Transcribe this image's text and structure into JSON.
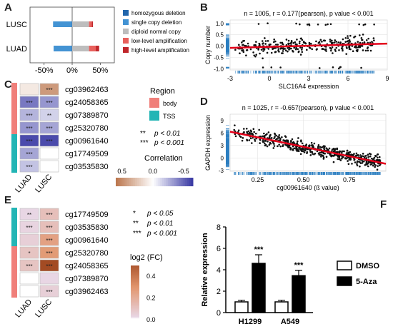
{
  "panels": {
    "A": {
      "letter": "A",
      "rows": [
        "LUSC",
        "LUAD"
      ],
      "ticks": [
        "-50%",
        "0%",
        "50%"
      ],
      "legend": [
        {
          "label": "homozygous deletion",
          "color": "#2166ac"
        },
        {
          "label": "single copy deletion",
          "color": "#4393d3"
        },
        {
          "label": "diploid normal copy",
          "color": "#bdbdbd"
        },
        {
          "label": "low-level amplification",
          "color": "#e8605c"
        },
        {
          "label": "high-level amplification",
          "color": "#c0262b"
        }
      ],
      "chart_data": {
        "type": "bar",
        "orientation": "horizontal-stacked",
        "categories": [
          "LUSC",
          "LUAD"
        ],
        "series": [
          {
            "name": "homozygous deletion",
            "values": [
              -1,
              -1
            ]
          },
          {
            "name": "single copy deletion",
            "values": [
              -33,
              -32
            ]
          },
          {
            "name": "diploid normal copy",
            "values": [
              30,
              30
            ]
          },
          {
            "name": "low-level amplification",
            "values": [
              5,
              12
            ]
          },
          {
            "name": "high-level amplification",
            "values": [
              2,
              6
            ]
          }
        ],
        "xlim": [
          -75,
          75
        ]
      }
    },
    "B": {
      "letter": "B",
      "title": "n = 1005, r = 0.177(pearson), p value < 0.001",
      "xlabel": "SLC16A4 expression",
      "ylabel": "Copy number",
      "xticks": [
        "-3",
        "0",
        "3",
        "6",
        "9"
      ],
      "yticks": [
        "1.0",
        "0.5",
        "0.0",
        "-0.5",
        "-1.0"
      ],
      "chart_data": {
        "type": "scatter",
        "xlim": [
          -3,
          9
        ],
        "ylim": [
          -1.05,
          1.15
        ],
        "fit_line": {
          "x": [
            -3,
            9
          ],
          "y": [
            -0.08,
            0.11
          ]
        }
      }
    },
    "C": {
      "letter": "C",
      "cols": [
        "LUAD",
        "LUSC"
      ],
      "probes": [
        "cg03962463",
        "cg24058365",
        "cg07389870",
        "cg25320780",
        "cg00961640",
        "cg17749509",
        "cg03535830"
      ],
      "regions": [
        "body",
        "body",
        "body",
        "body",
        "TSS",
        "TSS",
        "TSS"
      ],
      "stars": [
        [
          "",
          "***"
        ],
        [
          "***",
          "***"
        ],
        [
          "***",
          "**"
        ],
        [
          "***",
          "***"
        ],
        [
          "***",
          "***"
        ],
        [
          "***",
          ""
        ],
        [
          "***",
          ""
        ]
      ],
      "cells": [
        [
          0.1,
          0.45
        ],
        [
          -0.45,
          -0.35
        ],
        [
          -0.25,
          -0.15
        ],
        [
          -0.35,
          -0.3
        ],
        [
          -0.6,
          -0.6
        ],
        [
          -0.3,
          0.0
        ],
        [
          -0.2,
          0.0
        ]
      ],
      "region_title": "Region",
      "region_legend": [
        {
          "label": "body",
          "color": "#f07f7a"
        },
        {
          "label": "TSS",
          "color": "#22b5b5"
        }
      ],
      "sig_legend": [
        {
          "stars": "**",
          "text": "p < 0.01"
        },
        {
          "stars": "***",
          "text": "p < 0.001"
        }
      ],
      "colorbar_title": "Correlation",
      "colorbar_ticks": [
        "0.5",
        "0.0",
        "-0.5"
      ]
    },
    "D": {
      "letter": "D",
      "title": "n = 1025, r = -0.657(pearson), p value < 0.001",
      "xlabel": "cg00961640 (ß value)",
      "ylabel": "GAPDH expression",
      "xticks": [
        "0.25",
        "0.50",
        "0.75"
      ],
      "yticks": [
        "9",
        "6",
        "3",
        "0",
        "-3"
      ],
      "chart_data": {
        "type": "scatter",
        "xlim": [
          0.1,
          0.95
        ],
        "ylim": [
          -3.2,
          10.5
        ],
        "fit_line": {
          "x": [
            0.1,
            0.95
          ],
          "y": [
            6.3,
            -1.4
          ]
        }
      }
    },
    "E": {
      "letter": "E",
      "cols": [
        "LUAD",
        "LUSC"
      ],
      "probes": [
        "cg17749509",
        "cg03535830",
        "cg00961640",
        "cg25320780",
        "cg24058365",
        "cg07389870",
        "cg03962463"
      ],
      "regions": [
        "TSS",
        "TSS",
        "TSS",
        "body",
        "body",
        "body",
        "body"
      ],
      "stars": [
        [
          "**",
          "***"
        ],
        [
          "***",
          "***"
        ],
        [
          "",
          "***"
        ],
        [
          "*",
          "***"
        ],
        [
          "***",
          "***"
        ],
        [
          "",
          ""
        ],
        [
          "",
          "***"
        ]
      ],
      "cells": [
        [
          0.02,
          0.12
        ],
        [
          0.03,
          0.12
        ],
        [
          0.05,
          0.25
        ],
        [
          0.1,
          0.28
        ],
        [
          0.1,
          0.55
        ],
        [
          0.0,
          0.02
        ],
        [
          0.0,
          0.05
        ]
      ],
      "sig_legend": [
        {
          "stars": "*",
          "text": "p < 0.05"
        },
        {
          "stars": "**",
          "text": "p < 0.01"
        },
        {
          "stars": "***",
          "text": "p < 0.001"
        }
      ],
      "colorbar_title": "log2 (FC)",
      "colorbar_ticks": [
        "0.4",
        "0.2",
        "0.0"
      ]
    },
    "F": {
      "letter": "F",
      "ylabel": "Relative expression",
      "yticks": [
        "8",
        "6",
        "4",
        "2",
        "0"
      ],
      "legend": [
        {
          "label": "DMSO",
          "fill": "#ffffff"
        },
        {
          "label": "5-Aza",
          "fill": "#000000"
        }
      ],
      "chart_data": {
        "type": "bar",
        "categories": [
          "H1299",
          "A549"
        ],
        "series": [
          {
            "name": "DMSO",
            "values": [
              1.0,
              1.0
            ],
            "errors": [
              0.15,
              0.15
            ]
          },
          {
            "name": "5-Aza",
            "values": [
              4.6,
              3.45
            ],
            "errors": [
              0.8,
              0.5
            ]
          }
        ],
        "significance": [
          "***",
          "***"
        ],
        "ylim": [
          0,
          8
        ]
      }
    }
  }
}
